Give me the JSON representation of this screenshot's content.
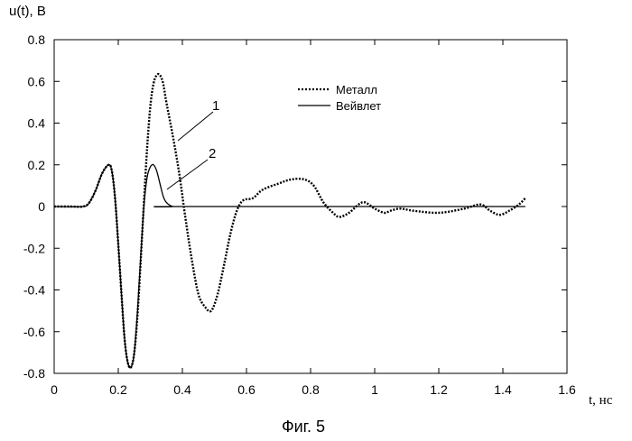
{
  "chart_data": {
    "type": "line",
    "ylabel": "u(t), В",
    "xlabel": "t, нс",
    "caption": "Фиг. 5",
    "xlim": [
      0,
      1.6
    ],
    "ylim": [
      -0.8,
      0.8
    ],
    "x_ticks": [
      "0",
      "0.2",
      "0.4",
      "0.6",
      "0.8",
      "1",
      "1.2",
      "1.4",
      "1.6"
    ],
    "y_ticks": [
      "0.8",
      "0.6",
      "0.4",
      "0.2",
      "0",
      "-0.2",
      "-0.4",
      "-0.6",
      "-0.8"
    ],
    "grid": false,
    "legend_position": "top-right",
    "series": [
      {
        "name": "Металл",
        "style": "dotted",
        "color": "#000000",
        "points": [
          [
            0,
            0.0
          ],
          [
            0.05,
            0.0
          ],
          [
            0.09,
            0.0
          ],
          [
            0.11,
            0.02
          ],
          [
            0.13,
            0.08
          ],
          [
            0.15,
            0.16
          ],
          [
            0.17,
            0.2
          ],
          [
            0.18,
            0.17
          ],
          [
            0.19,
            0.04
          ],
          [
            0.2,
            -0.18
          ],
          [
            0.21,
            -0.42
          ],
          [
            0.22,
            -0.64
          ],
          [
            0.23,
            -0.75
          ],
          [
            0.24,
            -0.77
          ],
          [
            0.25,
            -0.7
          ],
          [
            0.26,
            -0.52
          ],
          [
            0.27,
            -0.26
          ],
          [
            0.28,
            0.02
          ],
          [
            0.29,
            0.28
          ],
          [
            0.3,
            0.48
          ],
          [
            0.31,
            0.59
          ],
          [
            0.32,
            0.63
          ],
          [
            0.33,
            0.63
          ],
          [
            0.34,
            0.59
          ],
          [
            0.35,
            0.5
          ],
          [
            0.37,
            0.34
          ],
          [
            0.39,
            0.16
          ],
          [
            0.41,
            -0.06
          ],
          [
            0.43,
            -0.26
          ],
          [
            0.45,
            -0.42
          ],
          [
            0.47,
            -0.48
          ],
          [
            0.49,
            -0.5
          ],
          [
            0.51,
            -0.42
          ],
          [
            0.53,
            -0.28
          ],
          [
            0.55,
            -0.13
          ],
          [
            0.57,
            -0.02
          ],
          [
            0.59,
            0.03
          ],
          [
            0.62,
            0.04
          ],
          [
            0.65,
            0.08
          ],
          [
            0.7,
            0.11
          ],
          [
            0.74,
            0.13
          ],
          [
            0.78,
            0.13
          ],
          [
            0.81,
            0.1
          ],
          [
            0.84,
            0.02
          ],
          [
            0.87,
            -0.03
          ],
          [
            0.89,
            -0.05
          ],
          [
            0.92,
            -0.03
          ],
          [
            0.95,
            0.01
          ],
          [
            0.97,
            0.02
          ],
          [
            1.0,
            -0.01
          ],
          [
            1.03,
            -0.03
          ],
          [
            1.05,
            -0.02
          ],
          [
            1.08,
            -0.01
          ],
          [
            1.12,
            -0.02
          ],
          [
            1.2,
            -0.03
          ],
          [
            1.28,
            -0.01
          ],
          [
            1.33,
            0.01
          ],
          [
            1.36,
            -0.02
          ],
          [
            1.39,
            -0.04
          ],
          [
            1.42,
            -0.02
          ],
          [
            1.45,
            0.01
          ],
          [
            1.47,
            0.04
          ]
        ]
      },
      {
        "name": "Вейвлет",
        "style": "solid",
        "color": "#000000",
        "points": [
          [
            0,
            0.0
          ],
          [
            0.09,
            0.0
          ],
          [
            0.11,
            0.02
          ],
          [
            0.13,
            0.08
          ],
          [
            0.15,
            0.16
          ],
          [
            0.17,
            0.2
          ],
          [
            0.18,
            0.17
          ],
          [
            0.19,
            0.04
          ],
          [
            0.2,
            -0.18
          ],
          [
            0.21,
            -0.42
          ],
          [
            0.22,
            -0.64
          ],
          [
            0.23,
            -0.75
          ],
          [
            0.24,
            -0.77
          ],
          [
            0.25,
            -0.7
          ],
          [
            0.26,
            -0.5
          ],
          [
            0.27,
            -0.24
          ],
          [
            0.28,
            0.0
          ],
          [
            0.29,
            0.14
          ],
          [
            0.3,
            0.19
          ],
          [
            0.31,
            0.2
          ],
          [
            0.32,
            0.17
          ],
          [
            0.33,
            0.11
          ],
          [
            0.34,
            0.05
          ],
          [
            0.35,
            0.02
          ],
          [
            0.37,
            0.0
          ],
          [
            0.4,
            0.0
          ],
          [
            1.47,
            0.0
          ]
        ]
      }
    ],
    "annotations": [
      {
        "text": "1",
        "series": "Металл"
      },
      {
        "text": "2",
        "series": "Вейвлет"
      }
    ]
  }
}
